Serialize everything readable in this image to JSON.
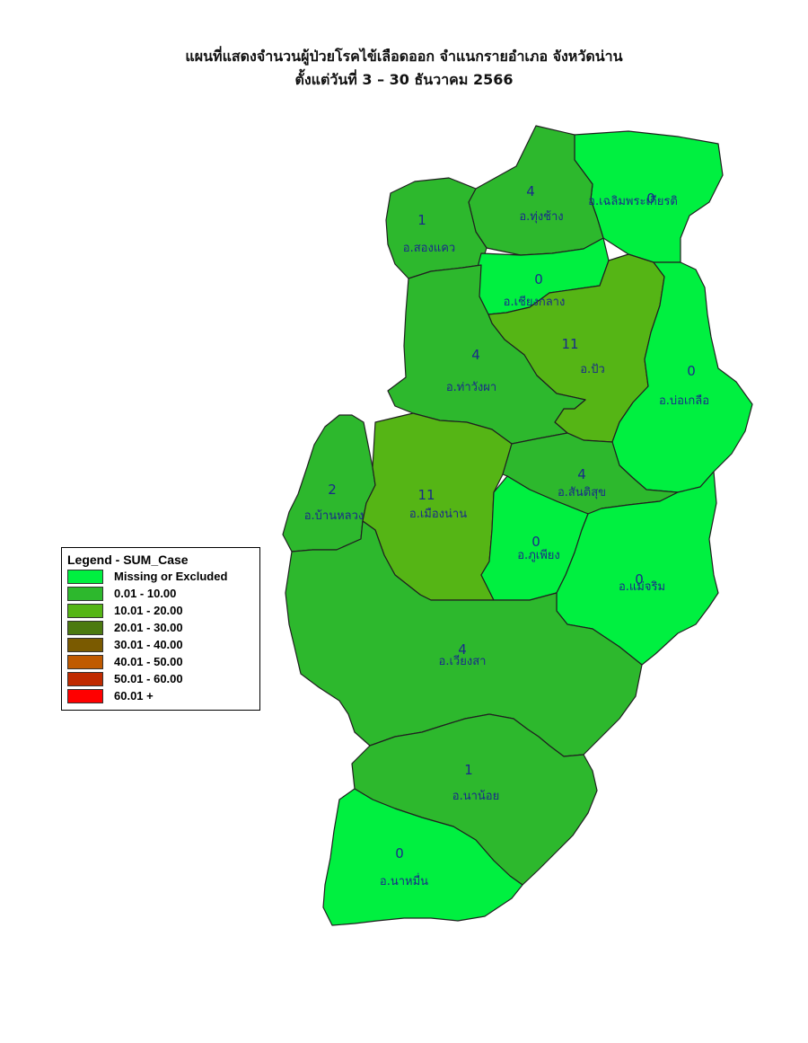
{
  "title": {
    "line1": "แผนที่แสดงจำนวนผู้ป่วยโรคไข้เลือดออก จำแนกรายอำเภอ จังหวัดน่าน",
    "line2": "ตั้งแต่วันที่ 3 – 30 ธันวาคม 2566"
  },
  "colors": {
    "missing": "#00f040",
    "c1": "#2db82d",
    "c2": "#55b515",
    "c3": "#4c7a10",
    "c4": "#7a5a00",
    "c5": "#c05a00",
    "c6": "#c02a00",
    "c7": "#ff0000",
    "border": "#202020",
    "label": "#1a2a8a"
  },
  "legend": {
    "title": "Legend - SUM_Case",
    "items": [
      {
        "label": "Missing or Excluded",
        "color": "#00f040"
      },
      {
        "label": "0.01 - 10.00",
        "color": "#2db82d"
      },
      {
        "label": "10.01 - 20.00",
        "color": "#55b515"
      },
      {
        "label": "20.01 - 30.00",
        "color": "#4c7a10"
      },
      {
        "label": "30.01 - 40.00",
        "color": "#7a5a00"
      },
      {
        "label": "40.01 - 50.00",
        "color": "#c05a00"
      },
      {
        "label": "50.01 - 60.00",
        "color": "#c02a00"
      },
      {
        "label": "60.01 +",
        "color": "#ff0000"
      }
    ]
  },
  "districts": [
    {
      "key": "chaloem",
      "name": "อ.เฉลิมพระเกียรติ",
      "cases": 0
    },
    {
      "key": "thung-chang",
      "name": "อ.ทุ่งช้าง",
      "cases": 4
    },
    {
      "key": "song-khwae",
      "name": "อ.สองแคว",
      "cases": 1
    },
    {
      "key": "chiang-klang",
      "name": "อ.เชียงกลาง",
      "cases": 0
    },
    {
      "key": "pua",
      "name": "อ.ปัว",
      "cases": 11
    },
    {
      "key": "tha-wang-pha",
      "name": "อ.ท่าวังผา",
      "cases": 4
    },
    {
      "key": "bo-kluea",
      "name": "อ.บ่อเกลือ",
      "cases": 0
    },
    {
      "key": "ban-luang",
      "name": "อ.บ้านหลวง",
      "cases": 2
    },
    {
      "key": "mueang-nan",
      "name": "อ.เมืองน่าน",
      "cases": 11
    },
    {
      "key": "santi-suk",
      "name": "อ.สันติสุข",
      "cases": 4
    },
    {
      "key": "phu-phiang",
      "name": "อ.ภูเพียง",
      "cases": 0
    },
    {
      "key": "mae-charim",
      "name": "อ.แม่จริม",
      "cases": 0
    },
    {
      "key": "wiang-sa",
      "name": "อ.เวียงสา",
      "cases": 4
    },
    {
      "key": "na-noi",
      "name": "อ.นาน้อย",
      "cases": 1
    },
    {
      "key": "na-muen",
      "name": "อ.นาหมื่น",
      "cases": 0
    }
  ]
}
